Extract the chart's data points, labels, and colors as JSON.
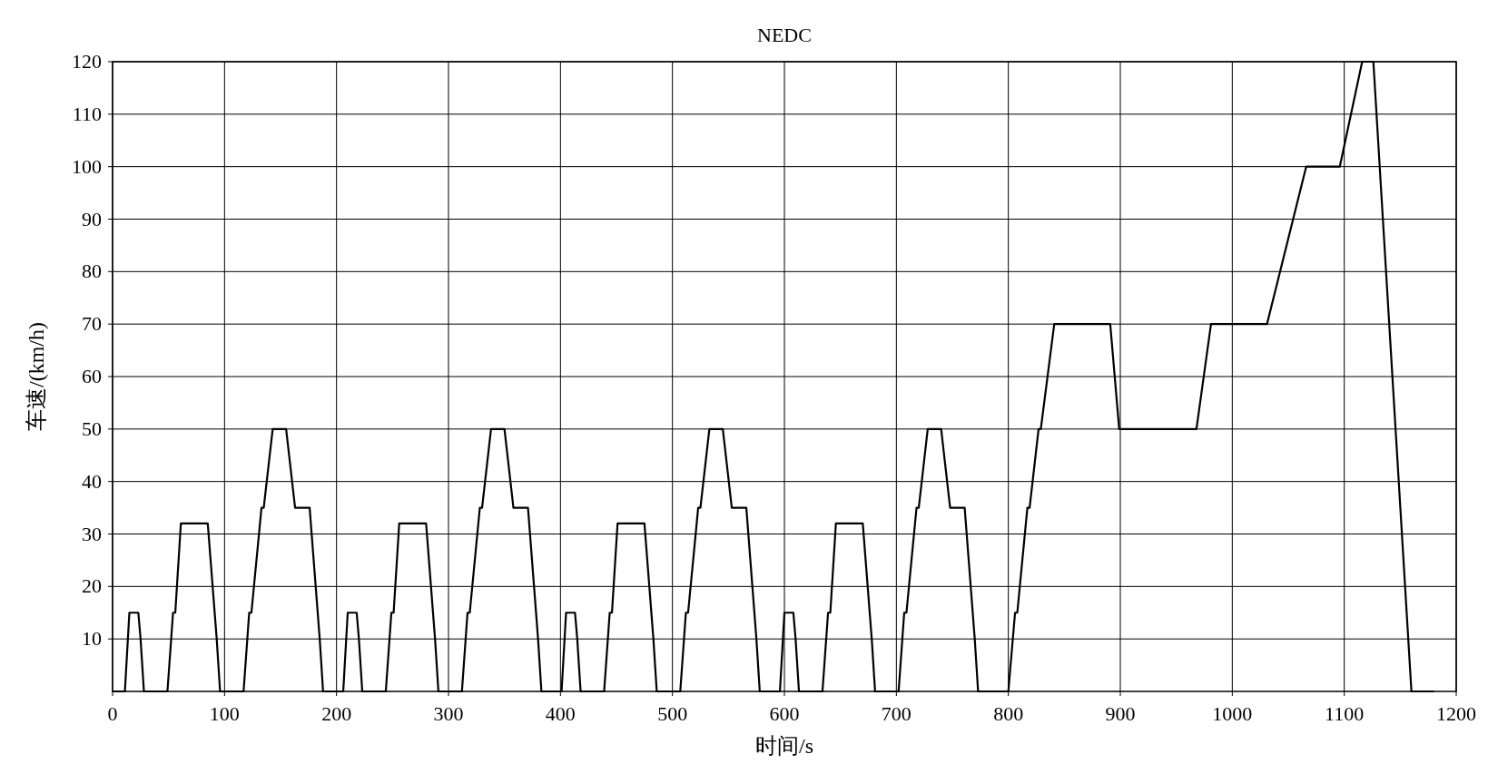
{
  "chart_data": {
    "type": "line",
    "title": "NEDC",
    "xlabel": "时间/s",
    "ylabel": "车速/(km/h)",
    "xlim": [
      0,
      1200
    ],
    "xticks": [
      0,
      100,
      200,
      300,
      400,
      500,
      600,
      700,
      800,
      900,
      1000,
      1100,
      1200
    ],
    "ylim": [
      0,
      120
    ],
    "yticks": [
      10,
      20,
      30,
      40,
      50,
      60,
      70,
      80,
      90,
      100,
      110,
      120
    ],
    "grid": true,
    "marker": "none",
    "line_style": "solid",
    "series": [
      {
        "color": "#000000",
        "x": [
          0,
          11,
          15,
          23,
          25,
          28,
          49,
          54,
          56,
          61,
          85,
          93,
          96,
          117,
          122,
          124,
          133,
          135,
          143,
          155,
          163,
          176,
          185,
          188,
          195,
          206,
          210,
          218,
          220,
          223,
          244,
          249,
          251,
          256,
          280,
          288,
          291,
          312,
          317,
          319,
          328,
          330,
          338,
          350,
          358,
          371,
          380,
          383,
          390,
          401,
          405,
          413,
          415,
          418,
          439,
          444,
          446,
          451,
          475,
          483,
          486,
          507,
          512,
          514,
          523,
          525,
          533,
          545,
          553,
          566,
          575,
          578,
          585,
          596,
          600,
          608,
          610,
          613,
          634,
          639,
          641,
          646,
          670,
          678,
          681,
          702,
          707,
          709,
          718,
          720,
          728,
          740,
          748,
          761,
          770,
          773,
          780,
          800,
          806,
          808,
          817,
          819,
          827,
          829,
          841,
          891,
          899,
          968,
          981,
          1031,
          1066,
          1096,
          1116,
          1126,
          1160,
          1180
        ],
        "values": [
          0,
          0,
          15,
          15,
          10,
          0,
          0,
          15,
          15,
          32,
          32,
          10,
          0,
          0,
          15,
          15,
          35,
          35,
          50,
          50,
          35,
          35,
          10,
          0,
          0,
          0,
          15,
          15,
          10,
          0,
          0,
          15,
          15,
          32,
          32,
          10,
          0,
          0,
          15,
          15,
          35,
          35,
          50,
          50,
          35,
          35,
          10,
          0,
          0,
          0,
          15,
          15,
          10,
          0,
          0,
          15,
          15,
          32,
          32,
          10,
          0,
          0,
          15,
          15,
          35,
          35,
          50,
          50,
          35,
          35,
          10,
          0,
          0,
          0,
          15,
          15,
          10,
          0,
          0,
          15,
          15,
          32,
          32,
          10,
          0,
          0,
          15,
          15,
          35,
          35,
          50,
          50,
          35,
          35,
          10,
          0,
          0,
          0,
          15,
          15,
          35,
          35,
          50,
          50,
          70,
          70,
          50,
          50,
          70,
          70,
          100,
          100,
          120,
          120,
          0,
          0
        ]
      }
    ]
  }
}
